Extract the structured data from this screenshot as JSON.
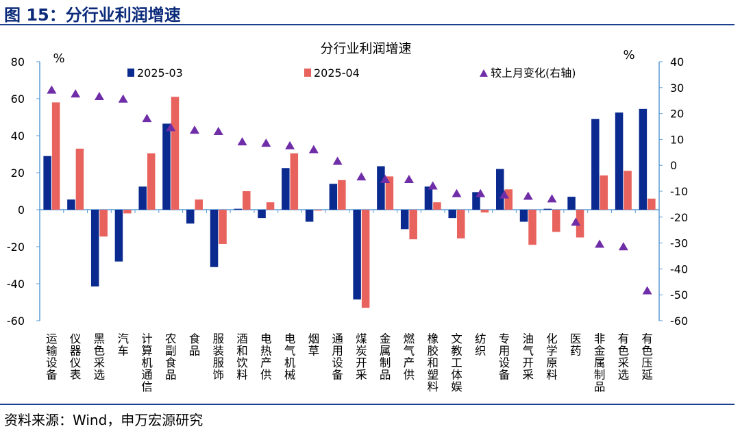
{
  "figure_title": "图 15：分行业利润增速",
  "source": "资料来源：Wind，申万宏源研究",
  "chart_data": {
    "type": "bar",
    "title": "分行业利润增速",
    "ylabel_left": "%",
    "ylabel_right": "%",
    "ylim": [
      -60,
      80
    ],
    "ylim_right": [
      -60,
      40
    ],
    "yticks": [
      80,
      60,
      40,
      20,
      0,
      -20,
      -40,
      -60
    ],
    "yticks_right": [
      40,
      30,
      20,
      10,
      0,
      -10,
      -20,
      -30,
      -40,
      -50,
      -60
    ],
    "legend_position": "top",
    "categories": [
      "运输设备",
      "仪器仪表",
      "黑色采选",
      "汽车",
      "计算机通信",
      "农副食品",
      "食品",
      "服装服饰",
      "酒和饮料",
      "电热产供",
      "电气机械",
      "烟草",
      "通用设备",
      "煤炭开采",
      "金属制品",
      "燃气产供",
      "橡胶和塑料",
      "文教工体娱",
      "纺织",
      "专用设备",
      "油气开采",
      "化学原料",
      "医药",
      "非金属制品",
      "有色采选",
      "有色压延"
    ],
    "series": [
      {
        "name": "2025-03",
        "type": "bar",
        "axis": "left",
        "color": "#0b2a8f",
        "values": [
          29,
          5.5,
          -41.5,
          -28,
          12.5,
          46.5,
          -7.5,
          -31,
          0.5,
          -4.5,
          22.5,
          -6.5,
          14,
          -48.5,
          23.5,
          -10.5,
          12.5,
          -4.5,
          9.5,
          22,
          -6.5,
          0.5,
          7,
          49,
          52.5,
          54.5
        ]
      },
      {
        "name": "2025-04",
        "type": "bar",
        "axis": "left",
        "color": "#e8635e",
        "values": [
          58,
          33,
          -14.5,
          -2,
          30.5,
          61,
          5.5,
          -18.5,
          10,
          4,
          30.5,
          -0.5,
          16,
          -53,
          18,
          -16,
          4,
          -15.5,
          -1.5,
          11,
          -19,
          -12,
          -15,
          18.5,
          21,
          6
        ]
      },
      {
        "name": "较上月变化(右轴)",
        "type": "scatter",
        "axis": "right",
        "color": "#6f2da8",
        "values": [
          29,
          27.5,
          26.5,
          25.5,
          18,
          14.5,
          13.5,
          13,
          9,
          8.5,
          7.5,
          6,
          1.5,
          -4.5,
          -5.5,
          -5.5,
          -8,
          -11,
          -11,
          -11.5,
          -12,
          -13,
          -22,
          -30.5,
          -31.5,
          -48.5
        ]
      }
    ]
  }
}
